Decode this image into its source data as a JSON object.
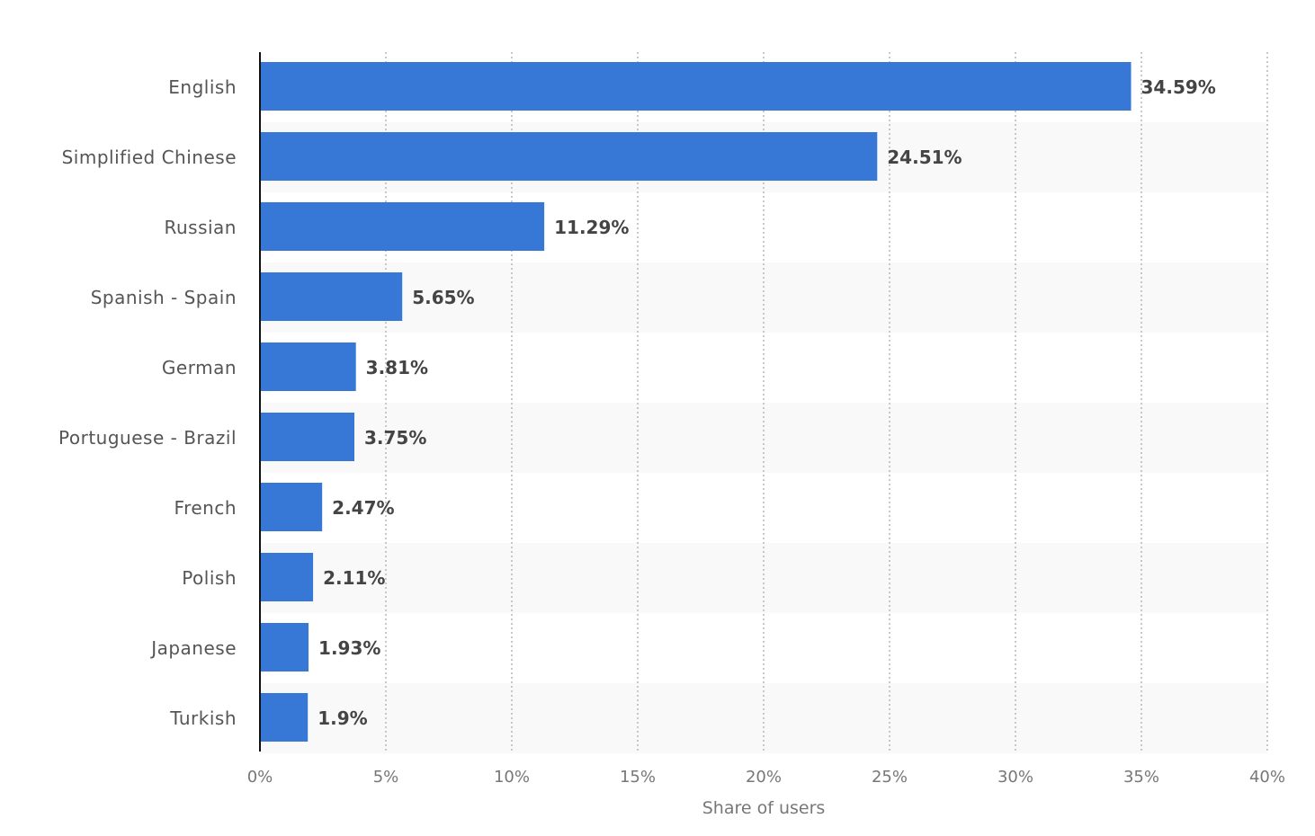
{
  "chart_data": {
    "type": "bar",
    "orientation": "horizontal",
    "categories": [
      "English",
      "Simplified Chinese",
      "Russian",
      "Spanish - Spain",
      "German",
      "Portuguese - Brazil",
      "French",
      "Polish",
      "Japanese",
      "Turkish"
    ],
    "values": [
      34.59,
      24.51,
      11.29,
      5.65,
      3.81,
      3.75,
      2.47,
      2.11,
      1.93,
      1.9
    ],
    "data_labels": [
      "34.59%",
      "24.51%",
      "11.29%",
      "5.65%",
      "3.81%",
      "3.75%",
      "2.47%",
      "2.11%",
      "1.93%",
      "1.9%"
    ],
    "xlabel": "Share of users",
    "xlim": [
      0,
      40
    ],
    "xticks": [
      0,
      5,
      10,
      15,
      20,
      25,
      30,
      35,
      40
    ],
    "xtick_labels": [
      "0%",
      "5%",
      "10%",
      "15%",
      "20%",
      "25%",
      "30%",
      "35%",
      "40%"
    ],
    "grid": "vertical dotted",
    "bar_color": "#3778d7"
  }
}
